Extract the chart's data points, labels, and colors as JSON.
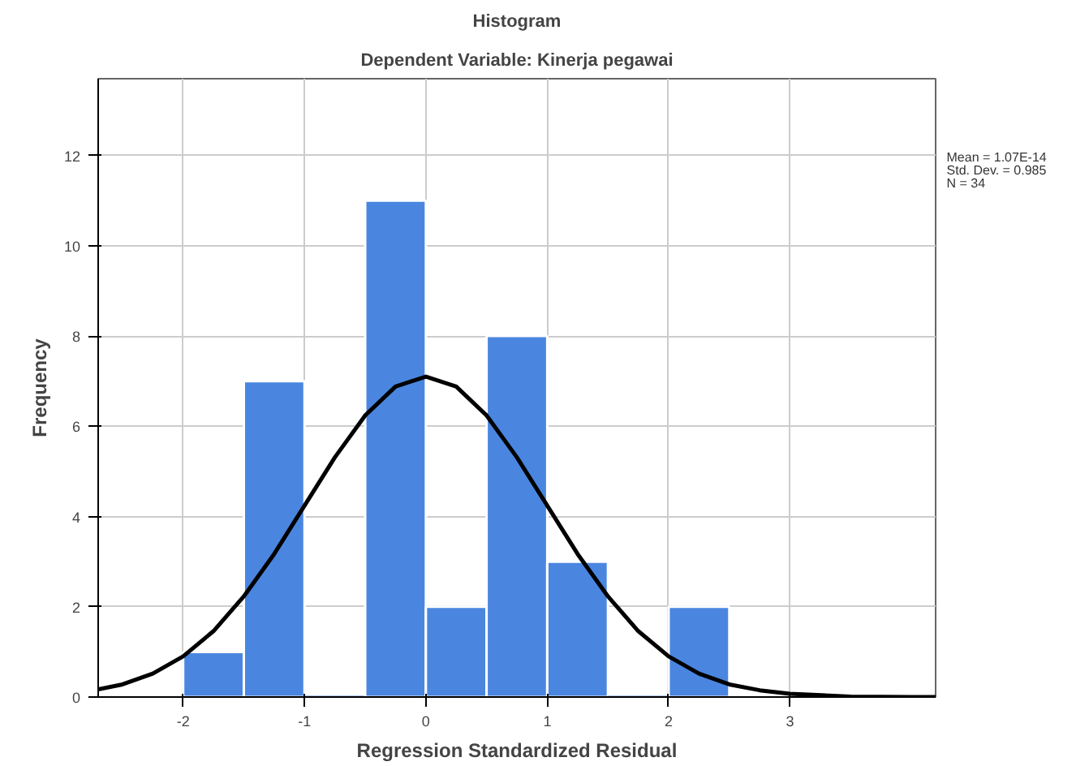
{
  "chart_data": {
    "type": "histogram",
    "title": "Histogram",
    "subtitle": "Dependent Variable: Kinerja pegawai",
    "xlabel": "Regression Standardized Residual",
    "ylabel": "Frequency",
    "xlim": [
      -2.7,
      4.2
    ],
    "xticks": [
      -2,
      -1,
      0,
      1,
      2,
      3
    ],
    "ylim": [
      0,
      13.7
    ],
    "yticks": [
      0,
      2,
      4,
      6,
      8,
      10,
      12
    ],
    "grid": true,
    "series": [
      {
        "color": "#4a86e0",
        "bins": [
          -2,
          -1.5,
          -1,
          -0.5,
          0,
          0.5,
          1,
          1.5,
          2,
          2.5
        ],
        "values": [
          1,
          7,
          0,
          11,
          2,
          8,
          3,
          0,
          2
        ]
      },
      {
        "type": "line",
        "color": "#000000",
        "x": [
          -2.7,
          -2.5,
          -2.25,
          -2,
          -1.75,
          -1.5,
          -1.25,
          -1,
          -0.75,
          -0.5,
          -0.25,
          0,
          0.25,
          0.5,
          0.75,
          1,
          1.25,
          1.5,
          1.75,
          2,
          2.25,
          2.5,
          2.75,
          3,
          3.5,
          4,
          4.2
        ],
        "values": [
          0.17,
          0.28,
          0.52,
          0.9,
          1.46,
          2.23,
          3.17,
          4.24,
          5.31,
          6.24,
          6.88,
          7.1,
          6.88,
          6.24,
          5.31,
          4.24,
          3.17,
          2.23,
          1.46,
          0.9,
          0.52,
          0.28,
          0.15,
          0.07,
          0.01,
          0,
          0
        ]
      }
    ],
    "annotations": [
      "Mean = 1.07E-14",
      "Std. Dev. = 0.985",
      "N = 34"
    ]
  }
}
